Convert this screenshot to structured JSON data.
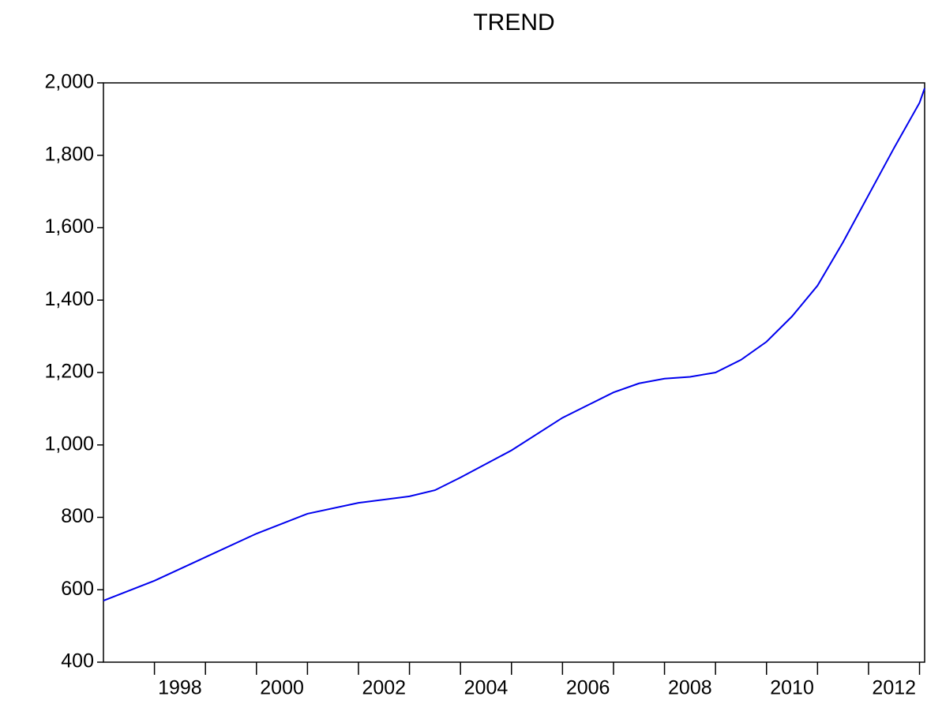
{
  "chart_data": {
    "type": "line",
    "title": "TREND",
    "series": [
      {
        "color": "#0000ee",
        "x": [
          1997.0,
          1998.0,
          1999.0,
          2000.0,
          2001.0,
          2002.0,
          2003.0,
          2003.5,
          2004.0,
          2005.0,
          2006.0,
          2006.5,
          2007.0,
          2007.5,
          2008.0,
          2008.5,
          2009.0,
          2009.5,
          2010.0,
          2010.5,
          2011.0,
          2011.5,
          2012.0,
          2012.5,
          2013.0,
          2013.1
        ],
        "values": [
          570,
          625,
          690,
          755,
          810,
          840,
          858,
          875,
          910,
          985,
          1075,
          1110,
          1145,
          1170,
          1183,
          1188,
          1200,
          1235,
          1285,
          1355,
          1440,
          1560,
          1690,
          1820,
          1945,
          1985
        ]
      }
    ],
    "xlim": [
      1997,
      2013.1
    ],
    "xticks": [
      1998,
      2000,
      2002,
      2004,
      2006,
      2008,
      2010,
      2012
    ],
    "xminorticks": [
      1999,
      2001,
      2003,
      2005,
      2007,
      2009,
      2011,
      2013
    ],
    "ylim": [
      400,
      2000
    ],
    "yticks": [
      400,
      600,
      800,
      {
        "value": 1000,
        "label": "1,000"
      },
      {
        "value": 1200,
        "label": "1,200"
      },
      {
        "value": 1400,
        "label": "1,400"
      },
      {
        "value": 1600,
        "label": "1,600"
      },
      {
        "value": 1800,
        "label": "1,800"
      },
      {
        "value": 2000,
        "label": "2,000"
      }
    ],
    "grid": false
  }
}
